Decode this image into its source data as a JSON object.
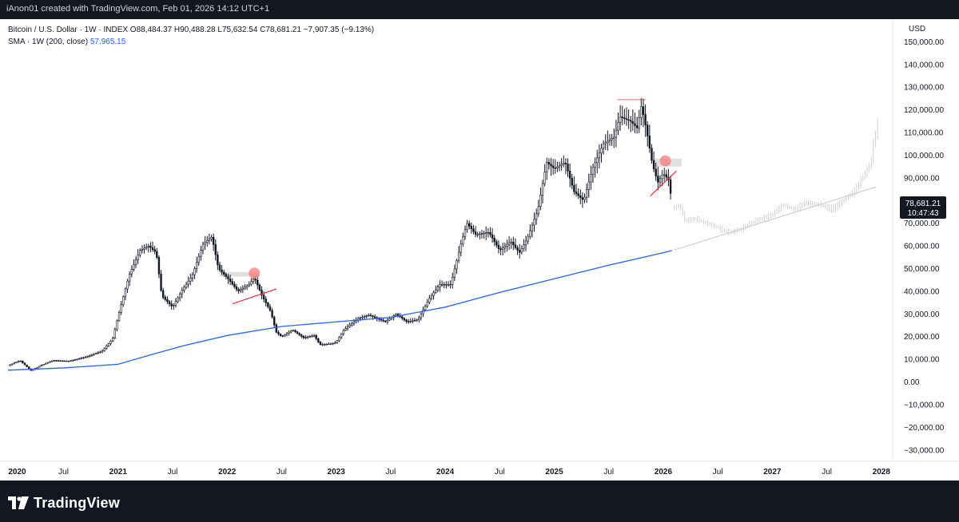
{
  "header": {
    "credit": "iAnon01 created with TradingView.com, Feb 01, 2026 14:12 UTC+1"
  },
  "legend": {
    "line1": "Bitcoin / U.S. Dollar · 1W · INDEX  O88,484.37  H90,488.28  L75,632.54  C78,681.21  −7,907.35 (−9.13%)",
    "sma_label": "SMA · 1W (200, close)",
    "sma_value": "57,965.15"
  },
  "footer": {
    "brand": "TradingView"
  },
  "colors": {
    "sma": "#2962ff",
    "candle": "#131722",
    "trendline": "#ef2a3d",
    "marker": "#f47a7a",
    "projection": "#cfcfcf",
    "last_price_bg": "#131722"
  },
  "chart_data": {
    "type": "candlestick",
    "currency_label": "USD",
    "last_price": {
      "value": 78681.21,
      "label": "78,681.21",
      "countdown": "10:47:43"
    },
    "y_axis": {
      "range": [
        -35000,
        160000
      ],
      "ticks": [
        {
          "v": 150000,
          "l": "150,000.00"
        },
        {
          "v": 140000,
          "l": "140,000.00"
        },
        {
          "v": 130000,
          "l": "130,000.00"
        },
        {
          "v": 120000,
          "l": "120,000.00"
        },
        {
          "v": 110000,
          "l": "110,000.00"
        },
        {
          "v": 100000,
          "l": "100,000.00"
        },
        {
          "v": 90000,
          "l": "90,000.00"
        },
        {
          "v": 80000,
          "l": "80,000.00"
        },
        {
          "v": 70000,
          "l": "70,000.00"
        },
        {
          "v": 60000,
          "l": "60,000.00"
        },
        {
          "v": 50000,
          "l": "50,000.00"
        },
        {
          "v": 40000,
          "l": "40,000.00"
        },
        {
          "v": 30000,
          "l": "30,000.00"
        },
        {
          "v": 20000,
          "l": "20,000.00"
        },
        {
          "v": 10000,
          "l": "10,000.00"
        },
        {
          "v": 0,
          "l": "0.00"
        },
        {
          "v": -10000,
          "l": "−10,000.00"
        },
        {
          "v": -20000,
          "l": "−20,000.00"
        },
        {
          "v": -30000,
          "l": "−30,000.00"
        }
      ]
    },
    "x_axis": {
      "range": [
        2019.99,
        2028.06
      ],
      "ticks": [
        {
          "t": 2020.0,
          "l": "2020",
          "bold": true
        },
        {
          "t": 2020.5,
          "l": "Jul",
          "bold": false
        },
        {
          "t": 2021.0,
          "l": "2021",
          "bold": true
        },
        {
          "t": 2021.5,
          "l": "Jul",
          "bold": false
        },
        {
          "t": 2022.0,
          "l": "2022",
          "bold": true
        },
        {
          "t": 2022.5,
          "l": "Jul",
          "bold": false
        },
        {
          "t": 2023.0,
          "l": "2023",
          "bold": true
        },
        {
          "t": 2023.5,
          "l": "Jul",
          "bold": false
        },
        {
          "t": 2024.0,
          "l": "2024",
          "bold": true
        },
        {
          "t": 2024.5,
          "l": "Jul",
          "bold": false
        },
        {
          "t": 2025.0,
          "l": "2025",
          "bold": true
        },
        {
          "t": 2025.5,
          "l": "Jul",
          "bold": false
        },
        {
          "t": 2026.0,
          "l": "2026",
          "bold": true
        },
        {
          "t": 2026.5,
          "l": "Jul",
          "bold": false
        },
        {
          "t": 2027.0,
          "l": "2027",
          "bold": true
        },
        {
          "t": 2027.5,
          "l": "Jul",
          "bold": false
        },
        {
          "t": 2028.0,
          "l": "2028",
          "bold": true
        }
      ]
    },
    "price_path": [
      [
        2019.99,
        7200
      ],
      [
        2020.1,
        9500
      ],
      [
        2020.2,
        5000
      ],
      [
        2020.3,
        7500
      ],
      [
        2020.4,
        9500
      ],
      [
        2020.55,
        9200
      ],
      [
        2020.7,
        11000
      ],
      [
        2020.85,
        13500
      ],
      [
        2020.95,
        19000
      ],
      [
        2021.0,
        29000
      ],
      [
        2021.1,
        47000
      ],
      [
        2021.2,
        58000
      ],
      [
        2021.28,
        60000
      ],
      [
        2021.35,
        57000
      ],
      [
        2021.4,
        38000
      ],
      [
        2021.5,
        33000
      ],
      [
        2021.58,
        40000
      ],
      [
        2021.68,
        47000
      ],
      [
        2021.78,
        61000
      ],
      [
        2021.86,
        64000
      ],
      [
        2021.92,
        50000
      ],
      [
        2022.0,
        46000
      ],
      [
        2022.1,
        40000
      ],
      [
        2022.2,
        43000
      ],
      [
        2022.25,
        46000
      ],
      [
        2022.32,
        38000
      ],
      [
        2022.4,
        31000
      ],
      [
        2022.45,
        22000
      ],
      [
        2022.5,
        20000
      ],
      [
        2022.6,
        23000
      ],
      [
        2022.7,
        19500
      ],
      [
        2022.8,
        20500
      ],
      [
        2022.85,
        16500
      ],
      [
        2022.95,
        16800
      ],
      [
        2023.0,
        17500
      ],
      [
        2023.07,
        23000
      ],
      [
        2023.2,
        28000
      ],
      [
        2023.3,
        29500
      ],
      [
        2023.45,
        26500
      ],
      [
        2023.55,
        30000
      ],
      [
        2023.65,
        26500
      ],
      [
        2023.75,
        27500
      ],
      [
        2023.85,
        36500
      ],
      [
        2023.95,
        43000
      ],
      [
        2024.05,
        43000
      ],
      [
        2024.15,
        62000
      ],
      [
        2024.2,
        70000
      ],
      [
        2024.28,
        65000
      ],
      [
        2024.4,
        66000
      ],
      [
        2024.5,
        58000
      ],
      [
        2024.6,
        62000
      ],
      [
        2024.68,
        57000
      ],
      [
        2024.75,
        63000
      ],
      [
        2024.85,
        76000
      ],
      [
        2024.93,
        97000
      ],
      [
        2025.0,
        94000
      ],
      [
        2025.1,
        97000
      ],
      [
        2025.18,
        84000
      ],
      [
        2025.27,
        80000
      ],
      [
        2025.35,
        94000
      ],
      [
        2025.45,
        105000
      ],
      [
        2025.55,
        108000
      ],
      [
        2025.6,
        117000
      ],
      [
        2025.7,
        115000
      ],
      [
        2025.76,
        112000
      ],
      [
        2025.8,
        122000
      ],
      [
        2025.85,
        110000
      ],
      [
        2025.9,
        96000
      ],
      [
        2025.95,
        88000
      ],
      [
        2026.0,
        92000
      ],
      [
        2026.05,
        89000
      ],
      [
        2026.08,
        78681
      ]
    ],
    "projection_path": [
      [
        2026.1,
        77000
      ],
      [
        2026.15,
        78000
      ],
      [
        2026.2,
        71000
      ],
      [
        2026.3,
        72000
      ],
      [
        2026.4,
        70000
      ],
      [
        2026.5,
        68000
      ],
      [
        2026.6,
        66000
      ],
      [
        2026.7,
        67000
      ],
      [
        2026.8,
        70000
      ],
      [
        2026.9,
        72000
      ],
      [
        2027.0,
        74000
      ],
      [
        2027.1,
        78000
      ],
      [
        2027.2,
        76000
      ],
      [
        2027.3,
        79000
      ],
      [
        2027.45,
        78000
      ],
      [
        2027.55,
        76000
      ],
      [
        2027.65,
        80000
      ],
      [
        2027.75,
        84000
      ],
      [
        2027.8,
        88000
      ],
      [
        2027.85,
        92000
      ],
      [
        2027.9,
        96000
      ],
      [
        2027.93,
        106000
      ],
      [
        2027.96,
        112000
      ],
      [
        2027.98,
        120000
      ]
    ],
    "sma_200": [
      [
        2019.99,
        5200
      ],
      [
        2020.5,
        6200
      ],
      [
        2021.0,
        7800
      ],
      [
        2021.3,
        12000
      ],
      [
        2021.6,
        16000
      ],
      [
        2022.0,
        20500
      ],
      [
        2022.5,
        24500
      ],
      [
        2023.0,
        26500
      ],
      [
        2023.5,
        28500
      ],
      [
        2024.0,
        33000
      ],
      [
        2024.5,
        39500
      ],
      [
        2025.0,
        45500
      ],
      [
        2025.5,
        51500
      ],
      [
        2026.0,
        57000
      ],
      [
        2026.08,
        57965
      ]
    ],
    "sma_projection": [
      [
        2026.1,
        58200
      ],
      [
        2027.95,
        86000
      ]
    ],
    "annotations": [
      {
        "type": "trendline",
        "from": [
          2022.05,
          34500
        ],
        "to": [
          2022.45,
          41000
        ]
      },
      {
        "type": "trendline",
        "from": [
          2025.88,
          82000
        ],
        "to": [
          2026.12,
          93000
        ]
      },
      {
        "type": "range_box",
        "t0": 2021.93,
        "t1": 2022.28,
        "v0": 46500,
        "v1": 48500
      },
      {
        "type": "range_box",
        "t0": 2025.92,
        "t1": 2026.17,
        "v0": 95000,
        "v1": 98500
      },
      {
        "type": "level",
        "t0": 2025.58,
        "t1": 2025.84,
        "v": 124500
      },
      {
        "type": "marker",
        "t": 2022.25,
        "v": 48000
      },
      {
        "type": "marker",
        "t": 2026.02,
        "v": 97500
      }
    ]
  }
}
